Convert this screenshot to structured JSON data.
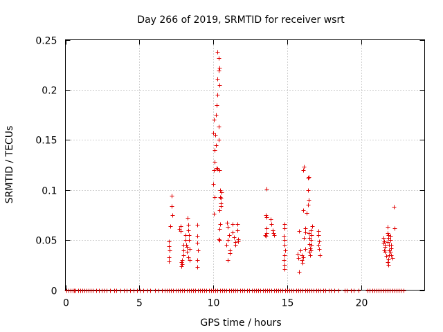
{
  "chart_data": {
    "type": "scatter",
    "title": "Day 266 of 2019, SRMTID for receiver wsrt",
    "xlabel": "GPS time / hours",
    "ylabel": "SRMTID / TECUs",
    "xlim": [
      0,
      24.3
    ],
    "ylim": [
      0,
      0.25
    ],
    "grid": true,
    "marker": "+",
    "color": "#e00000",
    "xticks": [
      0,
      5,
      10,
      15,
      20
    ],
    "xtick_labels": [
      "0",
      "5",
      "10",
      "15",
      "20"
    ],
    "yticks": [
      0,
      0.05,
      0.1,
      0.15,
      0.2,
      0.25
    ],
    "ytick_labels": [
      "0",
      "0.05",
      "0.1",
      "0.15",
      "0.2",
      "0.25"
    ],
    "series": [
      {
        "name": "SRMTID",
        "points": [
          [
            7.2,
            0.094
          ],
          [
            7.2,
            0.084
          ],
          [
            7.25,
            0.075
          ],
          [
            7.1,
            0.064
          ],
          [
            7.0,
            0.049
          ],
          [
            7.0,
            0.044
          ],
          [
            7.05,
            0.04
          ],
          [
            7.0,
            0.033
          ],
          [
            7.0,
            0.029
          ],
          [
            7.8,
            0.064
          ],
          [
            7.7,
            0.061
          ],
          [
            7.8,
            0.059
          ],
          [
            7.9,
            0.03
          ],
          [
            7.85,
            0.028
          ],
          [
            7.9,
            0.026
          ],
          [
            7.85,
            0.024
          ],
          [
            8.0,
            0.045
          ],
          [
            8.0,
            0.04
          ],
          [
            8.0,
            0.035
          ],
          [
            8.1,
            0.055
          ],
          [
            8.1,
            0.05
          ],
          [
            8.15,
            0.045
          ],
          [
            8.2,
            0.043
          ],
          [
            8.2,
            0.038
          ],
          [
            8.25,
            0.072
          ],
          [
            8.3,
            0.065
          ],
          [
            8.3,
            0.06
          ],
          [
            8.35,
            0.055
          ],
          [
            8.35,
            0.05
          ],
          [
            8.3,
            0.033
          ],
          [
            8.4,
            0.041
          ],
          [
            8.4,
            0.03
          ],
          [
            8.9,
            0.065
          ],
          [
            8.9,
            0.054
          ],
          [
            8.9,
            0.047
          ],
          [
            8.95,
            0.04
          ],
          [
            8.9,
            0.03
          ],
          [
            8.9,
            0.023
          ],
          [
            10.05,
            0.17
          ],
          [
            10.0,
            0.157
          ],
          [
            10.1,
            0.14
          ],
          [
            10.1,
            0.128
          ],
          [
            10.05,
            0.12
          ],
          [
            10.0,
            0.106
          ],
          [
            10.1,
            0.093
          ],
          [
            10.05,
            0.076
          ],
          [
            10.15,
            0.155
          ],
          [
            10.2,
            0.145
          ],
          [
            10.25,
            0.122
          ],
          [
            10.2,
            0.175
          ],
          [
            10.25,
            0.185
          ],
          [
            10.3,
            0.195
          ],
          [
            10.3,
            0.211
          ],
          [
            10.35,
            0.219
          ],
          [
            10.3,
            0.238
          ],
          [
            10.35,
            0.232
          ],
          [
            10.4,
            0.222
          ],
          [
            10.4,
            0.205
          ],
          [
            10.35,
            0.163
          ],
          [
            10.35,
            0.15
          ],
          [
            10.4,
            0.12
          ],
          [
            10.45,
            0.1
          ],
          [
            10.45,
            0.093
          ],
          [
            10.5,
            0.092
          ],
          [
            10.5,
            0.084
          ],
          [
            10.4,
            0.08
          ],
          [
            10.45,
            0.066
          ],
          [
            10.4,
            0.061
          ],
          [
            10.35,
            0.051
          ],
          [
            10.4,
            0.05
          ],
          [
            10.3,
            0.121
          ],
          [
            10.55,
            0.098
          ],
          [
            10.5,
            0.087
          ],
          [
            10.95,
            0.067
          ],
          [
            11.0,
            0.063
          ],
          [
            11.05,
            0.055
          ],
          [
            11.0,
            0.05
          ],
          [
            10.9,
            0.045
          ],
          [
            11.1,
            0.04
          ],
          [
            11.1,
            0.037
          ],
          [
            11.0,
            0.03
          ],
          [
            11.3,
            0.066
          ],
          [
            11.3,
            0.058
          ],
          [
            11.4,
            0.053
          ],
          [
            11.5,
            0.048
          ],
          [
            11.5,
            0.045
          ],
          [
            11.65,
            0.066
          ],
          [
            11.65,
            0.06
          ],
          [
            11.7,
            0.051
          ],
          [
            11.7,
            0.049
          ],
          [
            13.6,
            0.101
          ],
          [
            13.55,
            0.075
          ],
          [
            13.6,
            0.073
          ],
          [
            13.6,
            0.062
          ],
          [
            13.6,
            0.057
          ],
          [
            13.5,
            0.055
          ],
          [
            13.55,
            0.054
          ],
          [
            13.9,
            0.071
          ],
          [
            13.95,
            0.066
          ],
          [
            14.0,
            0.06
          ],
          [
            14.05,
            0.057
          ],
          [
            14.1,
            0.055
          ],
          [
            14.8,
            0.066
          ],
          [
            14.8,
            0.062
          ],
          [
            14.75,
            0.054
          ],
          [
            14.8,
            0.05
          ],
          [
            14.8,
            0.045
          ],
          [
            14.85,
            0.04
          ],
          [
            14.8,
            0.035
          ],
          [
            14.75,
            0.03
          ],
          [
            14.8,
            0.025
          ],
          [
            14.8,
            0.021
          ],
          [
            15.8,
            0.059
          ],
          [
            15.7,
            0.036
          ],
          [
            15.75,
            0.032
          ],
          [
            15.8,
            0.018
          ],
          [
            15.9,
            0.04
          ],
          [
            16.0,
            0.035
          ],
          [
            16.0,
            0.03
          ],
          [
            16.05,
            0.027
          ],
          [
            16.1,
            0.033
          ],
          [
            16.1,
            0.12
          ],
          [
            16.15,
            0.123
          ],
          [
            16.1,
            0.08
          ],
          [
            16.2,
            0.062
          ],
          [
            16.2,
            0.058
          ],
          [
            16.15,
            0.052
          ],
          [
            16.2,
            0.041
          ],
          [
            16.3,
            0.077
          ],
          [
            16.4,
            0.112
          ],
          [
            16.45,
            0.113
          ],
          [
            16.4,
            0.1
          ],
          [
            16.45,
            0.09
          ],
          [
            16.4,
            0.085
          ],
          [
            16.45,
            0.057
          ],
          [
            16.5,
            0.052
          ],
          [
            16.5,
            0.046
          ],
          [
            16.55,
            0.042
          ],
          [
            16.5,
            0.038
          ],
          [
            16.55,
            0.035
          ],
          [
            16.6,
            0.06
          ],
          [
            16.6,
            0.05
          ],
          [
            16.6,
            0.04
          ],
          [
            16.7,
            0.064
          ],
          [
            16.65,
            0.055
          ],
          [
            16.65,
            0.045
          ],
          [
            17.1,
            0.059
          ],
          [
            17.1,
            0.055
          ],
          [
            17.15,
            0.049
          ],
          [
            17.1,
            0.045
          ],
          [
            17.15,
            0.041
          ],
          [
            17.2,
            0.035
          ],
          [
            21.5,
            0.052
          ],
          [
            21.55,
            0.049
          ],
          [
            21.5,
            0.047
          ],
          [
            21.6,
            0.045
          ],
          [
            21.6,
            0.043
          ],
          [
            21.55,
            0.04
          ],
          [
            21.6,
            0.038
          ],
          [
            21.7,
            0.034
          ],
          [
            21.8,
            0.063
          ],
          [
            21.8,
            0.057
          ],
          [
            21.85,
            0.055
          ],
          [
            21.85,
            0.052
          ],
          [
            21.8,
            0.048
          ],
          [
            21.9,
            0.045
          ],
          [
            21.9,
            0.04
          ],
          [
            21.9,
            0.035
          ],
          [
            21.85,
            0.031
          ],
          [
            21.8,
            0.028
          ],
          [
            21.85,
            0.025
          ],
          [
            22.0,
            0.054
          ],
          [
            22.0,
            0.05
          ],
          [
            22.05,
            0.045
          ],
          [
            22.05,
            0.042
          ],
          [
            22.0,
            0.038
          ],
          [
            22.05,
            0.035
          ],
          [
            22.1,
            0.032
          ],
          [
            22.2,
            0.083
          ],
          [
            22.25,
            0.062
          ]
        ],
        "zero_x": [
          0.05,
          0.2,
          0.35,
          0.5,
          0.6,
          0.7,
          0.85,
          1.0,
          1.15,
          1.3,
          1.45,
          1.55,
          1.7,
          1.85,
          2.1,
          2.25,
          2.45,
          2.6,
          2.8,
          3.0,
          3.3,
          3.45,
          3.7,
          3.95,
          4.15,
          4.4,
          4.6,
          4.85,
          5.05,
          5.25,
          5.55,
          5.75,
          6.05,
          6.3,
          6.55,
          6.7,
          6.85,
          7.0,
          7.15,
          7.3,
          7.45,
          7.6,
          7.75,
          7.9,
          8.05,
          8.2,
          8.35,
          8.5,
          8.65,
          8.8,
          8.95,
          9.1,
          9.25,
          9.4,
          9.55,
          9.7,
          9.85,
          10.0,
          10.15,
          10.3,
          10.45,
          10.6,
          10.75,
          10.9,
          11.05,
          11.2,
          11.35,
          11.5,
          11.65,
          11.8,
          11.95,
          12.1,
          12.3,
          12.45,
          12.6,
          12.75,
          12.9,
          13.05,
          13.2,
          13.35,
          13.5,
          13.65,
          13.8,
          13.95,
          14.1,
          14.25,
          14.4,
          14.55,
          14.7,
          14.85,
          15.0,
          15.15,
          15.3,
          15.45,
          15.6,
          15.75,
          15.9,
          16.05,
          16.2,
          16.35,
          16.5,
          16.65,
          16.8,
          16.95,
          17.1,
          17.25,
          17.45,
          17.6,
          17.8,
          17.95,
          18.2,
          18.45,
          18.9,
          19.05,
          19.3,
          19.5,
          19.85,
          20.45,
          20.6,
          20.75,
          20.9,
          21.05,
          21.2,
          21.35,
          21.5,
          21.65,
          21.8,
          21.95,
          22.1,
          22.25,
          22.4,
          22.55,
          22.7,
          22.85
        ]
      }
    ]
  }
}
